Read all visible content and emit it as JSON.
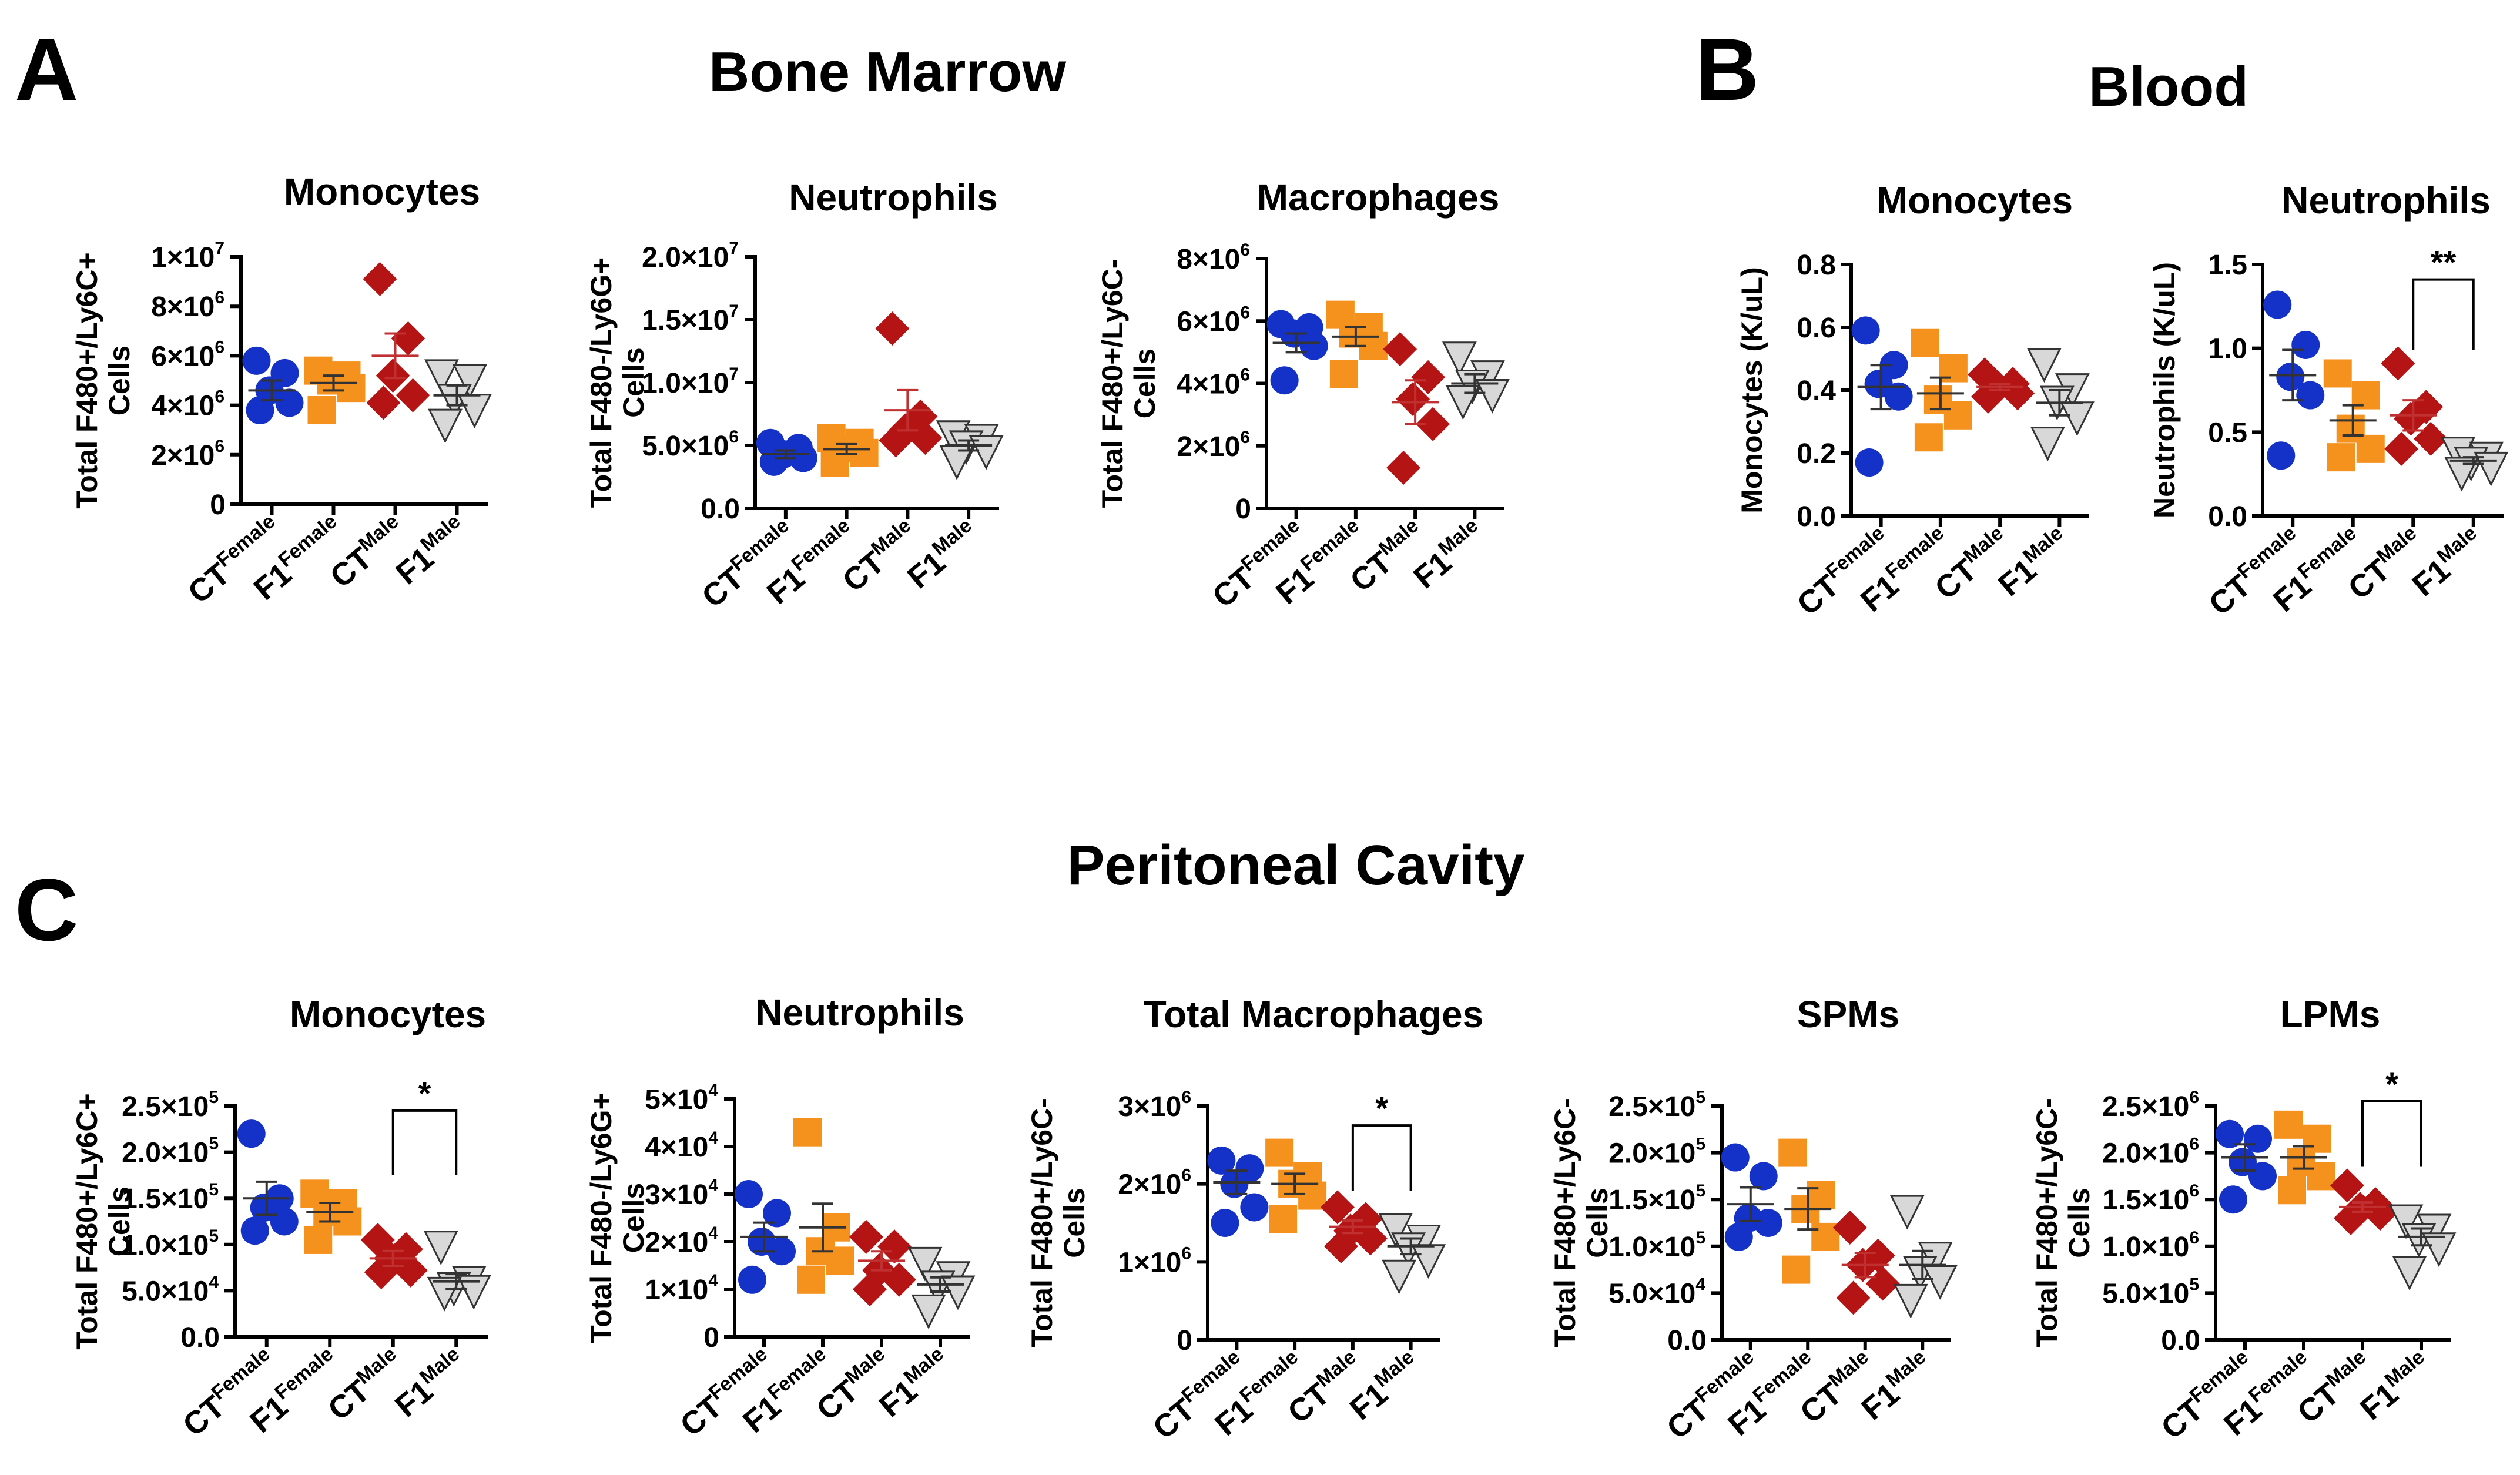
{
  "panels": [
    {
      "letter": "A",
      "title": "Bone Marrow"
    },
    {
      "letter": "B",
      "title": "Blood"
    },
    {
      "letter": "C",
      "title": "Peritoneal Cavity"
    }
  ],
  "groups": [
    {
      "base": "CT",
      "sup": "Female"
    },
    {
      "base": "F1",
      "sup": "Female"
    },
    {
      "base": "CT",
      "sup": "Male"
    },
    {
      "base": "F1",
      "sup": "Male"
    }
  ],
  "colors": {
    "ct_female": "#1432c8",
    "f1_female": "#f5921e",
    "ct_male": "#b41414",
    "f1_male": "#d8d8d8"
  },
  "chart_data": [
    {
      "type": "scatter",
      "panel": "A",
      "title": "Monocytes",
      "ylabel": [
        "Total F480+/Ly6C+",
        "Cells"
      ],
      "ylim": [
        0,
        10000000
      ],
      "ticks": [
        {
          "v": 0,
          "m": "0",
          "e": ""
        },
        {
          "v": 2000000,
          "m": "2×10",
          "e": "6"
        },
        {
          "v": 4000000,
          "m": "4×10",
          "e": "6"
        },
        {
          "v": 6000000,
          "m": "6×10",
          "e": "6"
        },
        {
          "v": 8000000,
          "m": "8×10",
          "e": "6"
        },
        {
          "v": 10000000,
          "m": "1×10",
          "e": "7"
        }
      ],
      "series": [
        {
          "name": "CTFemale",
          "values": [
            5800000,
            5300000,
            4600000,
            4100000,
            3800000
          ]
        },
        {
          "name": "F1Female",
          "values": [
            5400000,
            5200000,
            5000000,
            4700000,
            3800000
          ]
        },
        {
          "name": "CTMale",
          "values": [
            9100000,
            6700000,
            5200000,
            4400000,
            4100000
          ]
        },
        {
          "name": "F1Male",
          "values": [
            5300000,
            5100000,
            4300000,
            3900000,
            3300000
          ]
        }
      ],
      "means": [
        4600000,
        4900000,
        6000000,
        4400000
      ],
      "sems": [
        400000,
        300000,
        900000,
        400000
      ],
      "significance": []
    },
    {
      "type": "scatter",
      "panel": "A",
      "title": "Neutrophils",
      "ylabel": [
        "Total F480-/Ly6G+",
        "Cells"
      ],
      "ylim": [
        0,
        20000000
      ],
      "ticks": [
        {
          "v": 0,
          "m": "0.0",
          "e": ""
        },
        {
          "v": 5000000,
          "m": "5.0×10",
          "e": "6"
        },
        {
          "v": 10000000,
          "m": "1.0×10",
          "e": "7"
        },
        {
          "v": 15000000,
          "m": "1.5×10",
          "e": "7"
        },
        {
          "v": 20000000,
          "m": "2.0×10",
          "e": "7"
        }
      ],
      "series": [
        {
          "name": "CTFemale",
          "values": [
            5200000,
            4800000,
            4300000,
            4000000,
            3700000
          ]
        },
        {
          "name": "F1Female",
          "values": [
            5600000,
            5200000,
            4800000,
            4400000,
            3600000
          ]
        },
        {
          "name": "CTMale",
          "values": [
            14300000,
            7300000,
            6200000,
            5600000,
            5400000
          ]
        },
        {
          "name": "F1Male",
          "values": [
            5900000,
            5600000,
            5100000,
            4700000,
            3900000
          ]
        }
      ],
      "means": [
        4300000,
        4700000,
        7800000,
        5000000
      ],
      "sems": [
        300000,
        400000,
        1600000,
        400000
      ],
      "significance": []
    },
    {
      "type": "scatter",
      "panel": "A",
      "title": "Macrophages",
      "ylabel": [
        "Total F480+/Ly6C-",
        "Cells"
      ],
      "ylim": [
        0,
        8000000
      ],
      "ticks": [
        {
          "v": 0,
          "m": "0",
          "e": ""
        },
        {
          "v": 2000000,
          "m": "2×10",
          "e": "6"
        },
        {
          "v": 4000000,
          "m": "4×10",
          "e": "6"
        },
        {
          "v": 6000000,
          "m": "6×10",
          "e": "6"
        },
        {
          "v": 8000000,
          "m": "8×10",
          "e": "6"
        }
      ],
      "series": [
        {
          "name": "CTFemale",
          "values": [
            5900000,
            5800000,
            5600000,
            5200000,
            4100000
          ]
        },
        {
          "name": "F1Female",
          "values": [
            6200000,
            5800000,
            5600000,
            5200000,
            4300000
          ]
        },
        {
          "name": "CTMale",
          "values": [
            5100000,
            4200000,
            3500000,
            2700000,
            1300000
          ]
        },
        {
          "name": "F1Male",
          "values": [
            4900000,
            4300000,
            4000000,
            3700000,
            3500000
          ]
        }
      ],
      "means": [
        5300000,
        5500000,
        3400000,
        4000000
      ],
      "sems": [
        300000,
        300000,
        700000,
        300000
      ],
      "significance": []
    },
    {
      "type": "scatter",
      "panel": "B",
      "title": "Monocytes",
      "ylabel": [
        "Monocytes (K/uL)"
      ],
      "ylim": [
        0,
        0.8
      ],
      "ticks": [
        {
          "v": 0,
          "m": "0.0",
          "e": ""
        },
        {
          "v": 0.2,
          "m": "0.2",
          "e": ""
        },
        {
          "v": 0.4,
          "m": "0.4",
          "e": ""
        },
        {
          "v": 0.6,
          "m": "0.6",
          "e": ""
        },
        {
          "v": 0.8,
          "m": "0.8",
          "e": ""
        }
      ],
      "series": [
        {
          "name": "CTFemale",
          "values": [
            0.59,
            0.48,
            0.42,
            0.38,
            0.17
          ]
        },
        {
          "name": "F1Female",
          "values": [
            0.55,
            0.47,
            0.37,
            0.32,
            0.25
          ]
        },
        {
          "name": "CTMale",
          "values": [
            0.45,
            0.42,
            0.41,
            0.39,
            0.38
          ]
        },
        {
          "name": "F1Male",
          "values": [
            0.49,
            0.41,
            0.37,
            0.32,
            0.24
          ]
        }
      ],
      "means": [
        0.41,
        0.39,
        0.41,
        0.36
      ],
      "sems": [
        0.07,
        0.05,
        0.01,
        0.04
      ],
      "significance": []
    },
    {
      "type": "scatter",
      "panel": "B",
      "title": "Neutrophils",
      "ylabel": [
        "Neutrophils (K/uL)"
      ],
      "ylim": [
        0,
        1.5
      ],
      "ticks": [
        {
          "v": 0,
          "m": "0.0",
          "e": ""
        },
        {
          "v": 0.5,
          "m": "0.5",
          "e": ""
        },
        {
          "v": 1.0,
          "m": "1.0",
          "e": ""
        },
        {
          "v": 1.5,
          "m": "1.5",
          "e": ""
        }
      ],
      "series": [
        {
          "name": "CTFemale",
          "values": [
            1.26,
            1.02,
            0.83,
            0.72,
            0.36
          ]
        },
        {
          "name": "F1Female",
          "values": [
            0.85,
            0.72,
            0.52,
            0.4,
            0.35
          ]
        },
        {
          "name": "CTMale",
          "values": [
            0.91,
            0.65,
            0.58,
            0.46,
            0.4
          ]
        },
        {
          "name": "F1Male",
          "values": [
            0.39,
            0.36,
            0.33,
            0.3,
            0.27
          ]
        }
      ],
      "means": [
        0.84,
        0.57,
        0.6,
        0.33
      ],
      "sems": [
        0.15,
        0.09,
        0.09,
        0.02
      ],
      "significance": [
        {
          "from": 2,
          "to": 3,
          "y": 1.41,
          "label": "**"
        }
      ]
    },
    {
      "type": "scatter",
      "panel": "C",
      "title": "Monocytes",
      "ylabel": [
        "Total F480+/Ly6C+",
        "Cells"
      ],
      "ylim": [
        0,
        250000
      ],
      "ticks": [
        {
          "v": 0,
          "m": "0.0",
          "e": ""
        },
        {
          "v": 50000,
          "m": "5.0×10",
          "e": "4"
        },
        {
          "v": 100000,
          "m": "1.0×10",
          "e": "5"
        },
        {
          "v": 150000,
          "m": "1.5×10",
          "e": "5"
        },
        {
          "v": 200000,
          "m": "2.0×10",
          "e": "5"
        },
        {
          "v": 250000,
          "m": "2.5×10",
          "e": "5"
        }
      ],
      "series": [
        {
          "name": "CTFemale",
          "values": [
            220000,
            150000,
            140000,
            125000,
            115000
          ]
        },
        {
          "name": "F1Female",
          "values": [
            155000,
            145000,
            135000,
            125000,
            105000
          ]
        },
        {
          "name": "CTMale",
          "values": [
            105000,
            95000,
            85000,
            72000,
            70000
          ]
        },
        {
          "name": "F1Male",
          "values": [
            100000,
            62000,
            55000,
            52000,
            50000
          ]
        }
      ],
      "means": [
        150000,
        135000,
        85000,
        60000
      ],
      "sems": [
        18000,
        10000,
        8000,
        8000
      ],
      "significance": [
        {
          "from": 2,
          "to": 3,
          "y": 245000,
          "label": "*"
        }
      ]
    },
    {
      "type": "scatter",
      "panel": "C",
      "title": "Neutrophils",
      "ylabel": [
        "Total F480-/Ly6G+",
        "Cells"
      ],
      "ylim": [
        0,
        50000
      ],
      "ticks": [
        {
          "v": 0,
          "m": "0",
          "e": ""
        },
        {
          "v": 10000,
          "m": "1×10",
          "e": "4"
        },
        {
          "v": 20000,
          "m": "2×10",
          "e": "4"
        },
        {
          "v": 30000,
          "m": "3×10",
          "e": "4"
        },
        {
          "v": 40000,
          "m": "4×10",
          "e": "4"
        },
        {
          "v": 50000,
          "m": "5×10",
          "e": "4"
        }
      ],
      "series": [
        {
          "name": "CTFemale",
          "values": [
            30000,
            26000,
            20000,
            18000,
            12000
          ]
        },
        {
          "name": "F1Female",
          "values": [
            43000,
            23000,
            18000,
            16000,
            12000
          ]
        },
        {
          "name": "CTMale",
          "values": [
            21000,
            19000,
            14000,
            12000,
            10000
          ]
        },
        {
          "name": "F1Male",
          "values": [
            16000,
            13000,
            11000,
            10000,
            6000
          ]
        }
      ],
      "means": [
        21000,
        23000,
        16000,
        11000
      ],
      "sems": [
        3000,
        5000,
        2000,
        1500
      ],
      "significance": []
    },
    {
      "type": "scatter",
      "panel": "C",
      "title": "Total Macrophages",
      "ylabel": [
        "Total F480+/Ly6C-",
        "Cells"
      ],
      "ylim": [
        0,
        3000000
      ],
      "ticks": [
        {
          "v": 0,
          "m": "0",
          "e": ""
        },
        {
          "v": 1000000,
          "m": "1×10",
          "e": "6"
        },
        {
          "v": 2000000,
          "m": "2×10",
          "e": "6"
        },
        {
          "v": 3000000,
          "m": "3×10",
          "e": "6"
        }
      ],
      "series": [
        {
          "name": "CTFemale",
          "values": [
            2300000,
            2200000,
            2000000,
            1700000,
            1500000
          ]
        },
        {
          "name": "F1Female",
          "values": [
            2400000,
            2100000,
            2000000,
            1850000,
            1550000
          ]
        },
        {
          "name": "CTMale",
          "values": [
            1700000,
            1550000,
            1400000,
            1300000,
            1200000
          ]
        },
        {
          "name": "F1Male",
          "values": [
            1450000,
            1300000,
            1200000,
            1050000,
            850000
          ]
        }
      ],
      "means": [
        2020000,
        2000000,
        1450000,
        1200000
      ],
      "sems": [
        150000,
        130000,
        80000,
        100000
      ],
      "significance": [
        {
          "from": 2,
          "to": 3,
          "y": 2750000,
          "label": "*"
        }
      ]
    },
    {
      "type": "scatter",
      "panel": "C",
      "title": "SPMs",
      "ylabel": [
        "Total F480+/Ly6C-",
        "Cells"
      ],
      "ylim": [
        0,
        250000
      ],
      "ticks": [
        {
          "v": 0,
          "m": "0.0",
          "e": ""
        },
        {
          "v": 50000,
          "m": "5.0×10",
          "e": "4"
        },
        {
          "v": 100000,
          "m": "1.0×10",
          "e": "5"
        },
        {
          "v": 150000,
          "m": "1.5×10",
          "e": "5"
        },
        {
          "v": 200000,
          "m": "2.0×10",
          "e": "5"
        },
        {
          "v": 250000,
          "m": "2.5×10",
          "e": "5"
        }
      ],
      "series": [
        {
          "name": "CTFemale",
          "values": [
            195000,
            175000,
            130000,
            125000,
            110000
          ]
        },
        {
          "name": "F1Female",
          "values": [
            200000,
            155000,
            140000,
            110000,
            75000
          ]
        },
        {
          "name": "CTMale",
          "values": [
            120000,
            90000,
            80000,
            60000,
            45000
          ]
        },
        {
          "name": "F1Male",
          "values": [
            140000,
            90000,
            75000,
            65000,
            45000
          ]
        }
      ],
      "means": [
        145000,
        140000,
        80000,
        80000
      ],
      "sems": [
        18000,
        22000,
        13000,
        15000
      ],
      "significance": []
    },
    {
      "type": "scatter",
      "panel": "C",
      "title": "LPMs",
      "ylabel": [
        "Total F480+/Ly6C-",
        "Cells"
      ],
      "ylim": [
        0,
        2500000
      ],
      "ticks": [
        {
          "v": 0,
          "m": "0.0",
          "e": ""
        },
        {
          "v": 500000,
          "m": "5.0×10",
          "e": "5"
        },
        {
          "v": 1000000,
          "m": "1.0×10",
          "e": "6"
        },
        {
          "v": 1500000,
          "m": "1.5×10",
          "e": "6"
        },
        {
          "v": 2000000,
          "m": "2.0×10",
          "e": "6"
        },
        {
          "v": 2500000,
          "m": "2.5×10",
          "e": "6"
        }
      ],
      "series": [
        {
          "name": "CTFemale",
          "values": [
            2200000,
            2150000,
            1900000,
            1750000,
            1500000
          ]
        },
        {
          "name": "F1Female",
          "values": [
            2300000,
            2150000,
            1900000,
            1750000,
            1600000
          ]
        },
        {
          "name": "CTMale",
          "values": [
            1650000,
            1450000,
            1400000,
            1350000,
            1300000
          ]
        },
        {
          "name": "F1Male",
          "values": [
            1300000,
            1200000,
            1100000,
            1000000,
            750000
          ]
        }
      ],
      "means": [
        1950000,
        1950000,
        1420000,
        1100000
      ],
      "sems": [
        140000,
        120000,
        50000,
        90000
      ],
      "significance": [
        {
          "from": 2,
          "to": 3,
          "y": 2550000,
          "label": "*"
        }
      ]
    }
  ]
}
